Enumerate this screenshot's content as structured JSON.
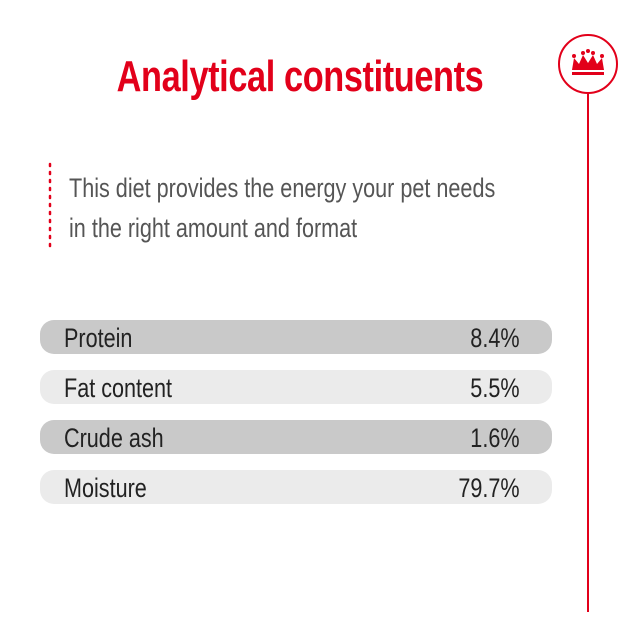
{
  "header": {
    "title": "Analytical constituents"
  },
  "intro": {
    "lines": [
      "This diet provides the energy your pet needs",
      "in the right amount and format"
    ]
  },
  "table": {
    "rows": [
      [
        "Protein",
        "8.4%"
      ],
      [
        "Fat content",
        "5.5%"
      ],
      [
        "Crude ash",
        "1.6%"
      ],
      [
        "Moisture",
        "79.7%"
      ]
    ]
  }
}
